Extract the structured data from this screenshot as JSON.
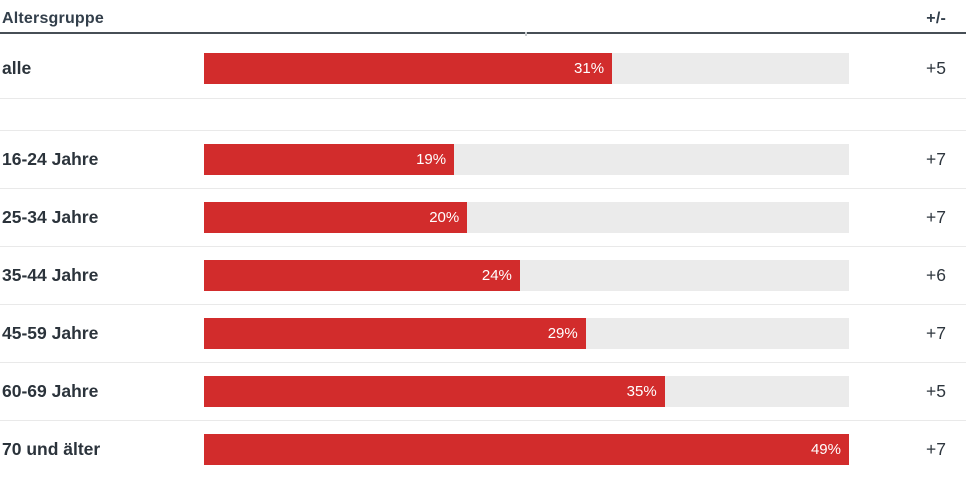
{
  "header": {
    "category_label": "Altersgruppe",
    "change_label": "+/-"
  },
  "rows": [
    {
      "label": "alle",
      "value": 31,
      "value_label": "31%",
      "change": "+5"
    },
    {
      "label": "16-24 Jahre",
      "value": 19,
      "value_label": "19%",
      "change": "+7"
    },
    {
      "label": "25-34 Jahre",
      "value": 20,
      "value_label": "20%",
      "change": "+7"
    },
    {
      "label": "35-44 Jahre",
      "value": 24,
      "value_label": "24%",
      "change": "+6"
    },
    {
      "label": "45-59 Jahre",
      "value": 29,
      "value_label": "29%",
      "change": "+7"
    },
    {
      "label": "60-69 Jahre",
      "value": 35,
      "value_label": "35%",
      "change": "+5"
    },
    {
      "label": "70 und älter",
      "value": 49,
      "value_label": "49%",
      "change": "+7"
    }
  ],
  "chart_data": {
    "type": "bar",
    "orientation": "horizontal",
    "title": "Altersgruppe",
    "categories": [
      "alle",
      "16-24 Jahre",
      "25-34 Jahre",
      "35-44 Jahre",
      "45-59 Jahre",
      "60-69 Jahre",
      "70 und älter"
    ],
    "values": [
      31,
      19,
      20,
      24,
      29,
      35,
      49
    ],
    "value_suffix": "%",
    "changes": [
      "+5",
      "+7",
      "+7",
      "+6",
      "+7",
      "+5",
      "+7"
    ],
    "change_column_label": "+/-",
    "xlim": [
      0,
      49
    ],
    "grid": false,
    "legend": false,
    "bar_color": "#d22c2c",
    "track_color": "#ebebeb"
  },
  "colors": {
    "bar": "#d22c2c",
    "track": "#ebebeb",
    "header_text": "#333f4b",
    "label_text": "#2b333b",
    "rule": "#474f56",
    "row_divider": "#e9e9e9",
    "bar_value_text": "#ffffff"
  }
}
